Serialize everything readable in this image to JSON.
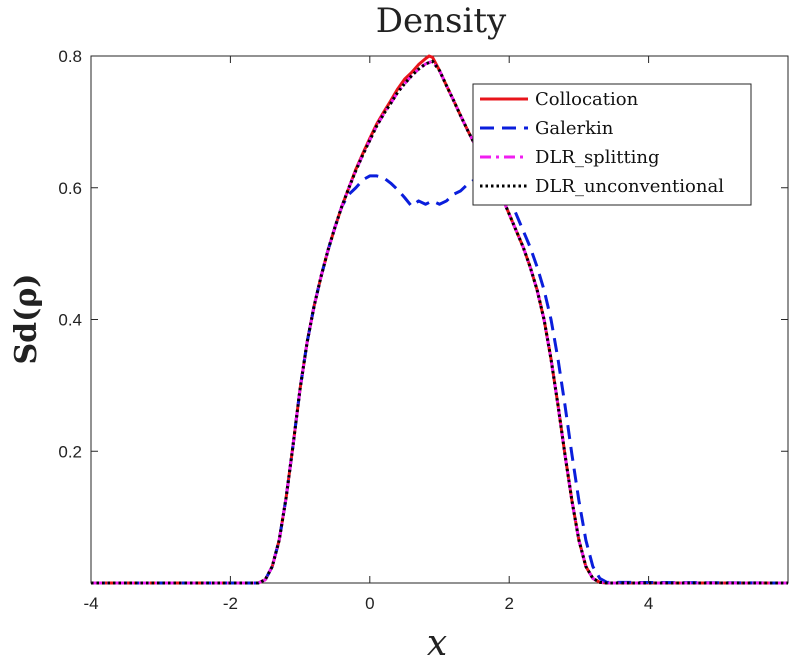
{
  "chart_data": {
    "type": "line",
    "title": "Density",
    "xlabel": "x",
    "ylabel": "Sd(ρ)",
    "xlim": [
      -4,
      6
    ],
    "ylim": [
      0,
      0.8
    ],
    "xticks": [
      -4,
      -2,
      0,
      2,
      4
    ],
    "xtick_labels": [
      "-4",
      "-2",
      "0",
      "2",
      "4"
    ],
    "yticks": [
      0.2,
      0.4,
      0.6,
      0.8
    ],
    "ytick_labels": [
      "0.2",
      "0.4",
      "0.6",
      "0.8"
    ],
    "grid": false,
    "legend_position": "top-right",
    "series": [
      {
        "name": "Collocation",
        "color": "#e8141b",
        "style": "solid",
        "x": [
          -4,
          -1.6,
          -1.5,
          -1.4,
          -1.3,
          -1.2,
          -1.1,
          -1.0,
          -0.9,
          -0.8,
          -0.7,
          -0.6,
          -0.5,
          -0.4,
          -0.3,
          -0.2,
          -0.1,
          0.0,
          0.1,
          0.2,
          0.3,
          0.4,
          0.5,
          0.6,
          0.7,
          0.8,
          0.85,
          0.9,
          1.0,
          1.1,
          1.2,
          1.3,
          1.4,
          1.5,
          1.6,
          1.7,
          1.8,
          1.9,
          2.0,
          2.1,
          2.2,
          2.3,
          2.4,
          2.5,
          2.6,
          2.7,
          2.8,
          2.9,
          3.0,
          3.1,
          3.2,
          3.3,
          3.4,
          6
        ],
        "y": [
          0,
          0,
          0.005,
          0.025,
          0.065,
          0.13,
          0.21,
          0.295,
          0.365,
          0.42,
          0.465,
          0.505,
          0.54,
          0.572,
          0.6,
          0.628,
          0.652,
          0.675,
          0.697,
          0.715,
          0.732,
          0.75,
          0.765,
          0.775,
          0.787,
          0.796,
          0.8,
          0.798,
          0.778,
          0.755,
          0.733,
          0.71,
          0.688,
          0.667,
          0.643,
          0.62,
          0.605,
          0.585,
          0.56,
          0.535,
          0.51,
          0.48,
          0.445,
          0.4,
          0.34,
          0.27,
          0.195,
          0.125,
          0.065,
          0.025,
          0.007,
          0.001,
          0,
          0
        ]
      },
      {
        "name": "Galerkin",
        "color": "#0a1edc",
        "style": "dashed",
        "x": [
          -4,
          -1.6,
          -1.5,
          -1.4,
          -1.3,
          -1.2,
          -1.1,
          -1.0,
          -0.9,
          -0.8,
          -0.7,
          -0.6,
          -0.5,
          -0.4,
          -0.3,
          -0.2,
          -0.1,
          0.0,
          0.1,
          0.2,
          0.3,
          0.4,
          0.5,
          0.6,
          0.7,
          0.8,
          0.9,
          1.0,
          1.1,
          1.2,
          1.3,
          1.4,
          1.5,
          1.6,
          1.7,
          1.8,
          1.9,
          2.0,
          2.1,
          2.2,
          2.3,
          2.4,
          2.5,
          2.6,
          2.7,
          2.8,
          2.9,
          3.0,
          3.1,
          3.2,
          3.3,
          3.4,
          6
        ],
        "y": [
          0,
          0,
          0.005,
          0.025,
          0.065,
          0.13,
          0.21,
          0.295,
          0.365,
          0.42,
          0.465,
          0.505,
          0.54,
          0.572,
          0.59,
          0.6,
          0.612,
          0.618,
          0.618,
          0.615,
          0.607,
          0.597,
          0.585,
          0.572,
          0.58,
          0.575,
          0.58,
          0.575,
          0.58,
          0.59,
          0.595,
          0.605,
          0.612,
          0.615,
          0.618,
          0.618,
          0.605,
          0.585,
          0.56,
          0.535,
          0.51,
          0.48,
          0.445,
          0.4,
          0.34,
          0.27,
          0.195,
          0.125,
          0.065,
          0.025,
          0.007,
          0.001,
          0
        ]
      },
      {
        "name": "DLR_splitting",
        "color": "#f01ef0",
        "style": "dashdot",
        "x": [
          -4,
          -1.6,
          -1.5,
          -1.4,
          -1.3,
          -1.2,
          -1.1,
          -1.0,
          -0.9,
          -0.8,
          -0.7,
          -0.6,
          -0.5,
          -0.4,
          -0.3,
          -0.2,
          -0.1,
          0.0,
          0.1,
          0.2,
          0.3,
          0.4,
          0.5,
          0.6,
          0.7,
          0.8,
          0.9,
          1.0,
          1.1,
          1.2,
          1.3,
          1.4,
          1.5,
          1.6,
          1.7,
          1.8,
          1.9,
          2.0,
          2.1,
          2.2,
          2.3,
          2.4,
          2.5,
          2.6,
          2.7,
          2.8,
          2.9,
          3.0,
          3.1,
          3.2,
          3.3,
          3.4,
          6
        ],
        "y": [
          0,
          0,
          0.005,
          0.025,
          0.065,
          0.13,
          0.21,
          0.295,
          0.365,
          0.42,
          0.465,
          0.505,
          0.54,
          0.572,
          0.6,
          0.626,
          0.65,
          0.672,
          0.694,
          0.712,
          0.728,
          0.745,
          0.758,
          0.77,
          0.78,
          0.788,
          0.792,
          0.778,
          0.755,
          0.733,
          0.71,
          0.688,
          0.667,
          0.643,
          0.62,
          0.605,
          0.585,
          0.56,
          0.535,
          0.51,
          0.48,
          0.445,
          0.4,
          0.34,
          0.27,
          0.195,
          0.125,
          0.065,
          0.025,
          0.007,
          0.001,
          0,
          0
        ]
      },
      {
        "name": "DLR_unconventional",
        "color": "#000000",
        "style": "dotted",
        "x": [
          -4,
          -1.6,
          -1.5,
          -1.4,
          -1.3,
          -1.2,
          -1.1,
          -1.0,
          -0.9,
          -0.8,
          -0.7,
          -0.6,
          -0.5,
          -0.4,
          -0.3,
          -0.2,
          -0.1,
          0.0,
          0.1,
          0.2,
          0.3,
          0.4,
          0.5,
          0.6,
          0.7,
          0.8,
          0.9,
          1.0,
          1.1,
          1.2,
          1.3,
          1.4,
          1.5,
          1.6,
          1.7,
          1.8,
          1.9,
          2.0,
          2.1,
          2.2,
          2.3,
          2.4,
          2.5,
          2.6,
          2.7,
          2.8,
          2.9,
          3.0,
          3.1,
          3.2,
          3.3,
          3.4,
          6
        ],
        "y": [
          0,
          0,
          0.005,
          0.025,
          0.065,
          0.13,
          0.21,
          0.295,
          0.365,
          0.42,
          0.465,
          0.505,
          0.54,
          0.572,
          0.6,
          0.626,
          0.65,
          0.672,
          0.694,
          0.712,
          0.728,
          0.745,
          0.758,
          0.77,
          0.78,
          0.788,
          0.792,
          0.778,
          0.755,
          0.733,
          0.71,
          0.688,
          0.667,
          0.643,
          0.62,
          0.605,
          0.585,
          0.56,
          0.535,
          0.51,
          0.48,
          0.445,
          0.4,
          0.34,
          0.27,
          0.195,
          0.125,
          0.065,
          0.025,
          0.007,
          0.001,
          0,
          0
        ]
      }
    ]
  }
}
